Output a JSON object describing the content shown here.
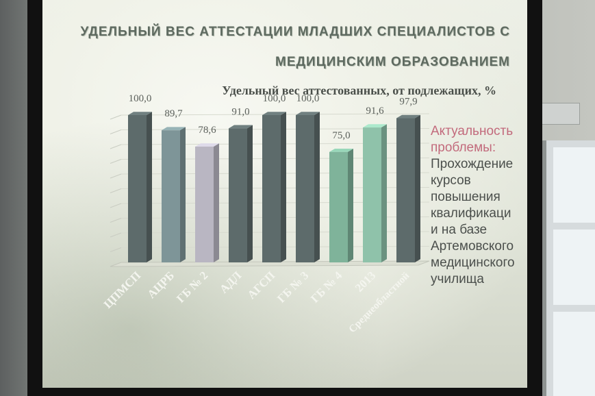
{
  "slide": {
    "title_line1": "УДЕЛЬНЫЙ ВЕС АТТЕСТАЦИИ МЛАДШИХ СПЕЦИАЛИСТОВ С",
    "title_line2": "МЕДИЦИНСКИМ ОБРАЗОВАНИЕМ",
    "subtitle": "Удельный вес аттестованных, от подлежащих, %",
    "note_highlight_lines": [
      "Актуальность",
      "проблемы:"
    ],
    "note_body_lines": [
      "Прохождение",
      "курсов",
      "повышения",
      "квалификаци",
      "и на базе",
      "Артемовского",
      "медицинского",
      "училища"
    ],
    "colors": {
      "title": "#5e6a60",
      "highlight": "#c26a7c",
      "note_text": "#4b4f4c"
    }
  },
  "chart_data": {
    "type": "bar",
    "categories": [
      "ЦПМСП",
      "АЦРБ",
      "ГБ № 2",
      "АДЛ",
      "АГСП",
      "ГБ № 3",
      "ГБ № 4",
      "2013",
      "Среднеобластной"
    ],
    "values": [
      100.0,
      89.7,
      78.6,
      91.0,
      100.0,
      100.0,
      75.0,
      91.6,
      97.9
    ],
    "value_labels": [
      "100,0",
      "89,7",
      "78,6",
      "91,0",
      "100,0",
      "100,0",
      "75,0",
      "91,6",
      "97,9"
    ],
    "bar_colors": [
      "#5d6b6b",
      "#7e9598",
      "#b9b6c2",
      "#5d6b6b",
      "#5d6b6b",
      "#5d6b6b",
      "#7fb39a",
      "#8fc2aa",
      "#5d6b6b"
    ],
    "title": "Удельный вес аттестованных, от подлежащих, %",
    "xlabel": "",
    "ylabel": "",
    "ylim": [
      0,
      100
    ],
    "grid": true
  }
}
